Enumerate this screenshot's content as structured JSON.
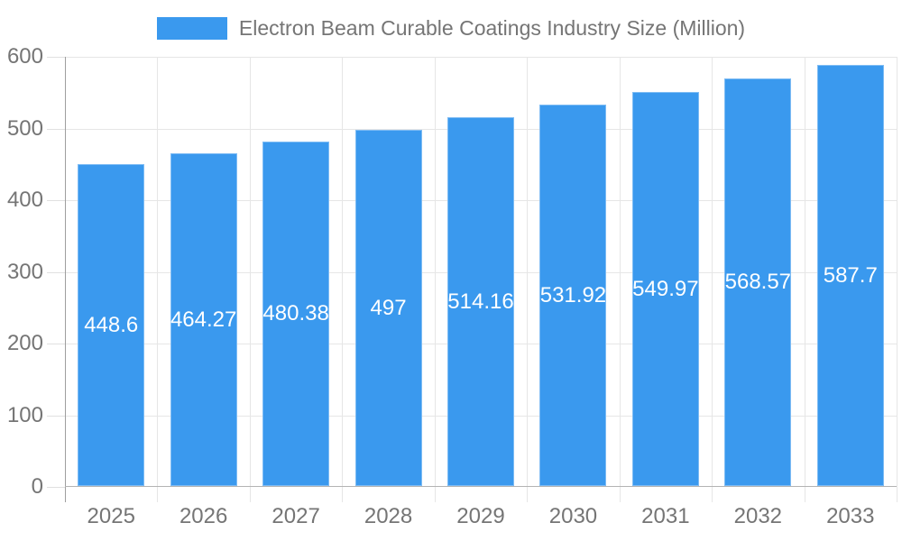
{
  "chart_data": {
    "type": "bar",
    "title": "Electron Beam Curable Coatings Industry Size (Million)",
    "categories": [
      "2025",
      "2026",
      "2027",
      "2028",
      "2029",
      "2030",
      "2031",
      "2032",
      "2033"
    ],
    "values": [
      448.6,
      464.27,
      480.38,
      497,
      514.16,
      531.92,
      549.97,
      568.57,
      587.7
    ],
    "value_labels": [
      "448.6",
      "464.27",
      "480.38",
      "497",
      "514.16",
      "531.92",
      "549.97",
      "568.57",
      "587.7"
    ],
    "xlabel": "",
    "ylabel": "",
    "ylim": [
      0,
      600
    ],
    "y_ticks": [
      0,
      100,
      200,
      300,
      400,
      500,
      600
    ],
    "grid": true,
    "legend_position": "top-center",
    "value_label_position": "middle-of-bar"
  },
  "style": {
    "bar_color": "#3a99ee",
    "grid_color": "#e6e6e6",
    "tick_color": "#e0e0e0",
    "axis_line_color": "#9e9e9e",
    "baseline_color": "#b3b3b3",
    "axis_text_color": "#757575",
    "value_text_color": "#ffffff",
    "background_color": "#ffffff"
  }
}
